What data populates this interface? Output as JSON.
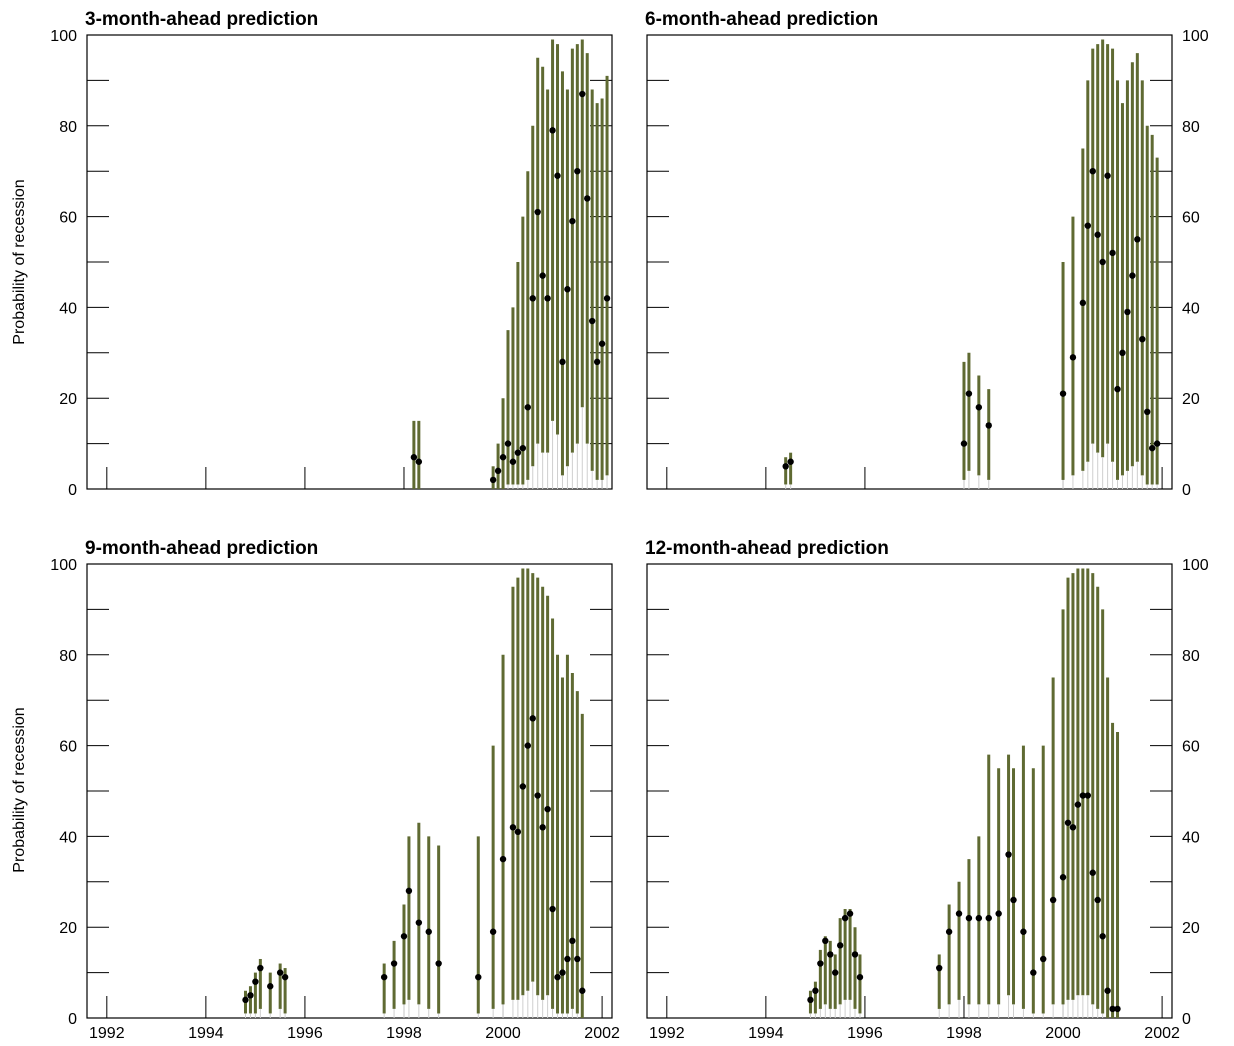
{
  "figure": {
    "ylabel": "Probability of recession"
  },
  "colors": {
    "band": "#5f6a32",
    "point": "#000000",
    "inner": "#cfcfcf"
  },
  "chart_data": [
    {
      "type": "errorbar",
      "title": "3-month-ahead prediction",
      "xlabel": "",
      "ylabel": "Probability of recession",
      "xlim": [
        1991.6,
        2002.2
      ],
      "ylim": [
        0,
        100
      ],
      "x_ticks": [
        1992,
        1994,
        1996,
        1998,
        2000,
        2002
      ],
      "y_ticks": [
        0,
        20,
        40,
        60,
        80,
        100
      ],
      "points": [
        {
          "x": 1998.2,
          "y": 7,
          "lo": 0,
          "hi": 15
        },
        {
          "x": 1998.3,
          "y": 6,
          "lo": 0,
          "hi": 15
        },
        {
          "x": 1999.8,
          "y": 2,
          "lo": 0,
          "hi": 5
        },
        {
          "x": 1999.9,
          "y": 4,
          "lo": 0,
          "hi": 10
        },
        {
          "x": 2000.0,
          "y": 7,
          "lo": 0,
          "hi": 20
        },
        {
          "x": 2000.1,
          "y": 10,
          "lo": 1,
          "hi": 35
        },
        {
          "x": 2000.2,
          "y": 6,
          "lo": 1,
          "hi": 40
        },
        {
          "x": 2000.3,
          "y": 8,
          "lo": 1,
          "hi": 50
        },
        {
          "x": 2000.4,
          "y": 9,
          "lo": 1,
          "hi": 60
        },
        {
          "x": 2000.5,
          "y": 18,
          "lo": 2,
          "hi": 70
        },
        {
          "x": 2000.6,
          "y": 42,
          "lo": 5,
          "hi": 80
        },
        {
          "x": 2000.7,
          "y": 61,
          "lo": 10,
          "hi": 95
        },
        {
          "x": 2000.8,
          "y": 47,
          "lo": 8,
          "hi": 93
        },
        {
          "x": 2000.9,
          "y": 42,
          "lo": 8,
          "hi": 88
        },
        {
          "x": 2001.0,
          "y": 79,
          "lo": 15,
          "hi": 99
        },
        {
          "x": 2001.1,
          "y": 69,
          "lo": 12,
          "hi": 98
        },
        {
          "x": 2001.2,
          "y": 28,
          "lo": 3,
          "hi": 92
        },
        {
          "x": 2001.3,
          "y": 44,
          "lo": 5,
          "hi": 88
        },
        {
          "x": 2001.4,
          "y": 59,
          "lo": 8,
          "hi": 97
        },
        {
          "x": 2001.5,
          "y": 70,
          "lo": 10,
          "hi": 98
        },
        {
          "x": 2001.6,
          "y": 87,
          "lo": 18,
          "hi": 99
        },
        {
          "x": 2001.7,
          "y": 64,
          "lo": 10,
          "hi": 96
        },
        {
          "x": 2001.8,
          "y": 37,
          "lo": 4,
          "hi": 88
        },
        {
          "x": 2001.9,
          "y": 28,
          "lo": 2,
          "hi": 85
        },
        {
          "x": 2002.0,
          "y": 32,
          "lo": 2,
          "hi": 86
        },
        {
          "x": 2002.1,
          "y": 42,
          "lo": 3,
          "hi": 91
        }
      ]
    },
    {
      "type": "errorbar",
      "title": "6-month-ahead prediction",
      "xlabel": "",
      "ylabel": "",
      "xlim": [
        1991.6,
        2002.2
      ],
      "ylim": [
        0,
        100
      ],
      "x_ticks": [
        1992,
        1994,
        1996,
        1998,
        2000,
        2002
      ],
      "y_ticks": [
        0,
        20,
        40,
        60,
        80,
        100
      ],
      "points": [
        {
          "x": 1994.4,
          "y": 5,
          "lo": 1,
          "hi": 7
        },
        {
          "x": 1994.5,
          "y": 6,
          "lo": 1,
          "hi": 8
        },
        {
          "x": 1998.0,
          "y": 10,
          "lo": 2,
          "hi": 28
        },
        {
          "x": 1998.1,
          "y": 21,
          "lo": 4,
          "hi": 30
        },
        {
          "x": 1998.3,
          "y": 18,
          "lo": 3,
          "hi": 25
        },
        {
          "x": 1998.5,
          "y": 14,
          "lo": 2,
          "hi": 22
        },
        {
          "x": 2000.0,
          "y": 21,
          "lo": 2,
          "hi": 50
        },
        {
          "x": 2000.2,
          "y": 29,
          "lo": 3,
          "hi": 60
        },
        {
          "x": 2000.4,
          "y": 41,
          "lo": 4,
          "hi": 75
        },
        {
          "x": 2000.5,
          "y": 58,
          "lo": 6,
          "hi": 90
        },
        {
          "x": 2000.6,
          "y": 70,
          "lo": 10,
          "hi": 97
        },
        {
          "x": 2000.7,
          "y": 56,
          "lo": 8,
          "hi": 98
        },
        {
          "x": 2000.8,
          "y": 50,
          "lo": 7,
          "hi": 99
        },
        {
          "x": 2000.9,
          "y": 69,
          "lo": 10,
          "hi": 98
        },
        {
          "x": 2001.0,
          "y": 52,
          "lo": 6,
          "hi": 97
        },
        {
          "x": 2001.1,
          "y": 22,
          "lo": 2,
          "hi": 90
        },
        {
          "x": 2001.2,
          "y": 30,
          "lo": 3,
          "hi": 85
        },
        {
          "x": 2001.3,
          "y": 39,
          "lo": 4,
          "hi": 90
        },
        {
          "x": 2001.4,
          "y": 47,
          "lo": 5,
          "hi": 94
        },
        {
          "x": 2001.5,
          "y": 55,
          "lo": 6,
          "hi": 96
        },
        {
          "x": 2001.6,
          "y": 33,
          "lo": 3,
          "hi": 90
        },
        {
          "x": 2001.7,
          "y": 17,
          "lo": 1,
          "hi": 80
        },
        {
          "x": 2001.8,
          "y": 9,
          "lo": 1,
          "hi": 78
        },
        {
          "x": 2001.9,
          "y": 10,
          "lo": 1,
          "hi": 73
        }
      ]
    },
    {
      "type": "errorbar",
      "title": "9-month-ahead prediction",
      "xlabel": "",
      "ylabel": "Probability of recession",
      "xlim": [
        1991.6,
        2002.2
      ],
      "ylim": [
        0,
        100
      ],
      "x_ticks": [
        1992,
        1994,
        1996,
        1998,
        2000,
        2002
      ],
      "y_ticks": [
        0,
        20,
        40,
        60,
        80,
        100
      ],
      "points": [
        {
          "x": 1994.8,
          "y": 4,
          "lo": 1,
          "hi": 6
        },
        {
          "x": 1994.9,
          "y": 5,
          "lo": 1,
          "hi": 7
        },
        {
          "x": 1995.0,
          "y": 8,
          "lo": 1,
          "hi": 10
        },
        {
          "x": 1995.1,
          "y": 11,
          "lo": 2,
          "hi": 13
        },
        {
          "x": 1995.3,
          "y": 7,
          "lo": 1,
          "hi": 10
        },
        {
          "x": 1995.5,
          "y": 10,
          "lo": 2,
          "hi": 12
        },
        {
          "x": 1995.6,
          "y": 9,
          "lo": 1,
          "hi": 11
        },
        {
          "x": 1997.6,
          "y": 9,
          "lo": 1,
          "hi": 12
        },
        {
          "x": 1997.8,
          "y": 12,
          "lo": 2,
          "hi": 17
        },
        {
          "x": 1998.0,
          "y": 18,
          "lo": 3,
          "hi": 25
        },
        {
          "x": 1998.1,
          "y": 28,
          "lo": 4,
          "hi": 40
        },
        {
          "x": 1998.3,
          "y": 21,
          "lo": 3,
          "hi": 43
        },
        {
          "x": 1998.5,
          "y": 19,
          "lo": 2,
          "hi": 40
        },
        {
          "x": 1998.7,
          "y": 12,
          "lo": 1,
          "hi": 38
        },
        {
          "x": 1999.5,
          "y": 9,
          "lo": 1,
          "hi": 40
        },
        {
          "x": 1999.8,
          "y": 19,
          "lo": 2,
          "hi": 60
        },
        {
          "x": 2000.0,
          "y": 35,
          "lo": 3,
          "hi": 80
        },
        {
          "x": 2000.2,
          "y": 42,
          "lo": 4,
          "hi": 95
        },
        {
          "x": 2000.3,
          "y": 41,
          "lo": 4,
          "hi": 97
        },
        {
          "x": 2000.4,
          "y": 51,
          "lo": 5,
          "hi": 99
        },
        {
          "x": 2000.5,
          "y": 60,
          "lo": 6,
          "hi": 99
        },
        {
          "x": 2000.6,
          "y": 66,
          "lo": 8,
          "hi": 98
        },
        {
          "x": 2000.7,
          "y": 49,
          "lo": 5,
          "hi": 97
        },
        {
          "x": 2000.8,
          "y": 42,
          "lo": 4,
          "hi": 95
        },
        {
          "x": 2000.9,
          "y": 46,
          "lo": 5,
          "hi": 93
        },
        {
          "x": 2001.0,
          "y": 24,
          "lo": 2,
          "hi": 88
        },
        {
          "x": 2001.1,
          "y": 9,
          "lo": 1,
          "hi": 80
        },
        {
          "x": 2001.2,
          "y": 10,
          "lo": 1,
          "hi": 75
        },
        {
          "x": 2001.3,
          "y": 13,
          "lo": 1,
          "hi": 80
        },
        {
          "x": 2001.4,
          "y": 17,
          "lo": 2,
          "hi": 76
        },
        {
          "x": 2001.5,
          "y": 13,
          "lo": 1,
          "hi": 72
        },
        {
          "x": 2001.6,
          "y": 6,
          "lo": 0,
          "hi": 67
        }
      ]
    },
    {
      "type": "errorbar",
      "title": "12-month-ahead prediction",
      "xlabel": "",
      "ylabel": "",
      "xlim": [
        1991.6,
        2002.2
      ],
      "ylim": [
        0,
        100
      ],
      "x_ticks": [
        1992,
        1994,
        1996,
        1998,
        2000,
        2002
      ],
      "y_ticks": [
        0,
        20,
        40,
        60,
        80,
        100
      ],
      "points": [
        {
          "x": 1994.9,
          "y": 4,
          "lo": 1,
          "hi": 6
        },
        {
          "x": 1995.0,
          "y": 6,
          "lo": 1,
          "hi": 8
        },
        {
          "x": 1995.1,
          "y": 12,
          "lo": 2,
          "hi": 15
        },
        {
          "x": 1995.2,
          "y": 17,
          "lo": 3,
          "hi": 18
        },
        {
          "x": 1995.3,
          "y": 14,
          "lo": 2,
          "hi": 17
        },
        {
          "x": 1995.4,
          "y": 10,
          "lo": 2,
          "hi": 14
        },
        {
          "x": 1995.5,
          "y": 16,
          "lo": 3,
          "hi": 22
        },
        {
          "x": 1995.6,
          "y": 22,
          "lo": 4,
          "hi": 24
        },
        {
          "x": 1995.7,
          "y": 23,
          "lo": 4,
          "hi": 24
        },
        {
          "x": 1995.8,
          "y": 14,
          "lo": 2,
          "hi": 20
        },
        {
          "x": 1995.9,
          "y": 9,
          "lo": 1,
          "hi": 14
        },
        {
          "x": 1997.5,
          "y": 11,
          "lo": 2,
          "hi": 14
        },
        {
          "x": 1997.7,
          "y": 19,
          "lo": 3,
          "hi": 25
        },
        {
          "x": 1997.9,
          "y": 23,
          "lo": 4,
          "hi": 30
        },
        {
          "x": 1998.1,
          "y": 22,
          "lo": 3,
          "hi": 35
        },
        {
          "x": 1998.3,
          "y": 22,
          "lo": 3,
          "hi": 40
        },
        {
          "x": 1998.5,
          "y": 22,
          "lo": 3,
          "hi": 58
        },
        {
          "x": 1998.7,
          "y": 23,
          "lo": 3,
          "hi": 55
        },
        {
          "x": 1998.9,
          "y": 36,
          "lo": 5,
          "hi": 58
        },
        {
          "x": 1999.0,
          "y": 26,
          "lo": 3,
          "hi": 55
        },
        {
          "x": 1999.2,
          "y": 19,
          "lo": 2,
          "hi": 60
        },
        {
          "x": 1999.4,
          "y": 10,
          "lo": 1,
          "hi": 55
        },
        {
          "x": 1999.6,
          "y": 13,
          "lo": 1,
          "hi": 60
        },
        {
          "x": 1999.8,
          "y": 26,
          "lo": 3,
          "hi": 75
        },
        {
          "x": 2000.0,
          "y": 31,
          "lo": 3,
          "hi": 90
        },
        {
          "x": 2000.1,
          "y": 43,
          "lo": 4,
          "hi": 97
        },
        {
          "x": 2000.2,
          "y": 42,
          "lo": 4,
          "hi": 98
        },
        {
          "x": 2000.3,
          "y": 47,
          "lo": 5,
          "hi": 99
        },
        {
          "x": 2000.4,
          "y": 49,
          "lo": 5,
          "hi": 99
        },
        {
          "x": 2000.5,
          "y": 49,
          "lo": 5,
          "hi": 99
        },
        {
          "x": 2000.6,
          "y": 32,
          "lo": 3,
          "hi": 98
        },
        {
          "x": 2000.7,
          "y": 26,
          "lo": 2,
          "hi": 95
        },
        {
          "x": 2000.8,
          "y": 18,
          "lo": 1,
          "hi": 90
        },
        {
          "x": 2000.9,
          "y": 6,
          "lo": 0,
          "hi": 75
        },
        {
          "x": 2001.0,
          "y": 2,
          "lo": 0,
          "hi": 65
        },
        {
          "x": 2001.1,
          "y": 2,
          "lo": 0,
          "hi": 63
        }
      ]
    }
  ]
}
